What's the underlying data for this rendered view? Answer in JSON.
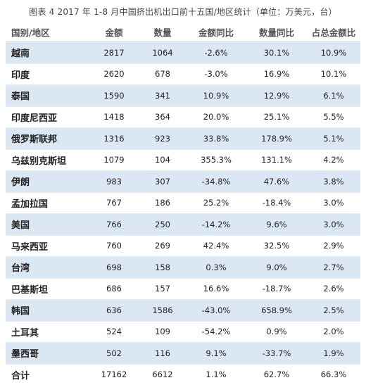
{
  "caption": "图表 4   2017 年 1-8 月中国挤出机出口前十五国/地区统计（单位：万美元，台）",
  "table": {
    "headers": [
      "国别/地区",
      "金额",
      "数量",
      "金额同比",
      "数量同比",
      "占总金额比"
    ],
    "rows": [
      [
        "越南",
        "2817",
        "1064",
        "-2.6%",
        "30.1%",
        "10.9%"
      ],
      [
        "印度",
        "2620",
        "678",
        "-3.0%",
        "16.9%",
        "10.1%"
      ],
      [
        "泰国",
        "1590",
        "341",
        "10.9%",
        "12.9%",
        "6.1%"
      ],
      [
        "印度尼西亚",
        "1418",
        "364",
        "20.0%",
        "25.1%",
        "5.5%"
      ],
      [
        "俄罗斯联邦",
        "1316",
        "923",
        "33.8%",
        "178.9%",
        "5.1%"
      ],
      [
        "乌兹别克斯坦",
        "1079",
        "104",
        "355.3%",
        "131.1%",
        "4.2%"
      ],
      [
        "伊朗",
        "983",
        "307",
        "-34.8%",
        "47.6%",
        "3.8%"
      ],
      [
        "孟加拉国",
        "767",
        "186",
        "25.2%",
        "-18.4%",
        "3.0%"
      ],
      [
        "美国",
        "766",
        "250",
        "-14.2%",
        "9.6%",
        "3.0%"
      ],
      [
        "马来西亚",
        "760",
        "269",
        "42.4%",
        "32.5%",
        "2.9%"
      ],
      [
        "台湾",
        "698",
        "158",
        "0.3%",
        "9.0%",
        "2.7%"
      ],
      [
        "巴基斯坦",
        "686",
        "157",
        "16.6%",
        "-18.7%",
        "2.6%"
      ],
      [
        "韩国",
        "636",
        "1586",
        "-43.0%",
        "658.9%",
        "2.5%"
      ],
      [
        "土耳其",
        "524",
        "109",
        "-54.2%",
        "0.9%",
        "2.0%"
      ],
      [
        "墨西哥",
        "502",
        "116",
        "9.1%",
        "-33.7%",
        "1.9%"
      ]
    ],
    "total": [
      "合计",
      "17162",
      "6612",
      "1.1%",
      "62.7%",
      "66.3%"
    ]
  },
  "colors": {
    "stripe": "#dce7f4",
    "header_text": "#555555",
    "body_text": "#222222"
  }
}
